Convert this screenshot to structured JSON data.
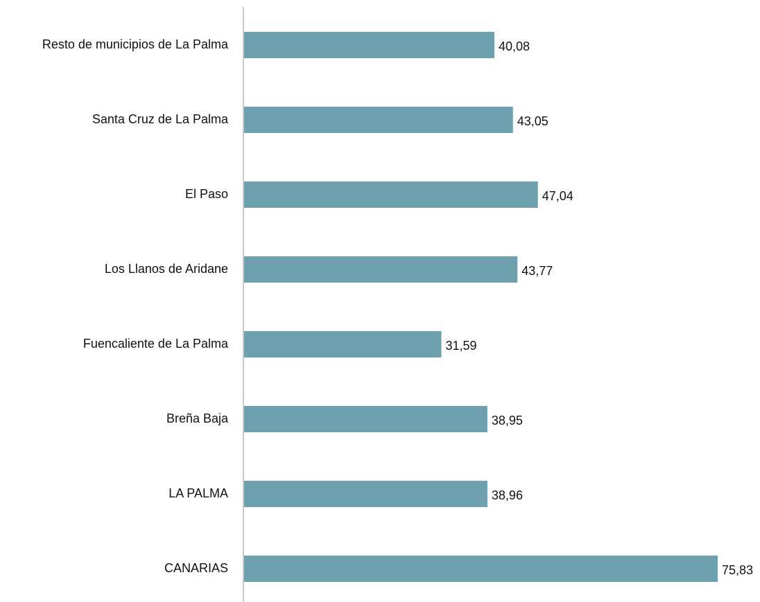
{
  "chart_data": {
    "type": "hbar",
    "categories": [
      "Resto de municipios de La Palma",
      "Santa Cruz de La Palma",
      "El Paso",
      "Los Llanos de Aridane",
      "Fuencaliente de La Palma",
      "Breña Baja",
      "LA PALMA",
      "CANARIAS"
    ],
    "values": [
      40.08,
      43.05,
      47.04,
      43.77,
      31.59,
      38.95,
      38.96,
      75.83
    ],
    "value_labels": [
      "40,08",
      "43,05",
      "47,04",
      "43,77",
      "31,59",
      "38,95",
      "38,96",
      "75,83"
    ],
    "color": "#6fa0ae"
  }
}
